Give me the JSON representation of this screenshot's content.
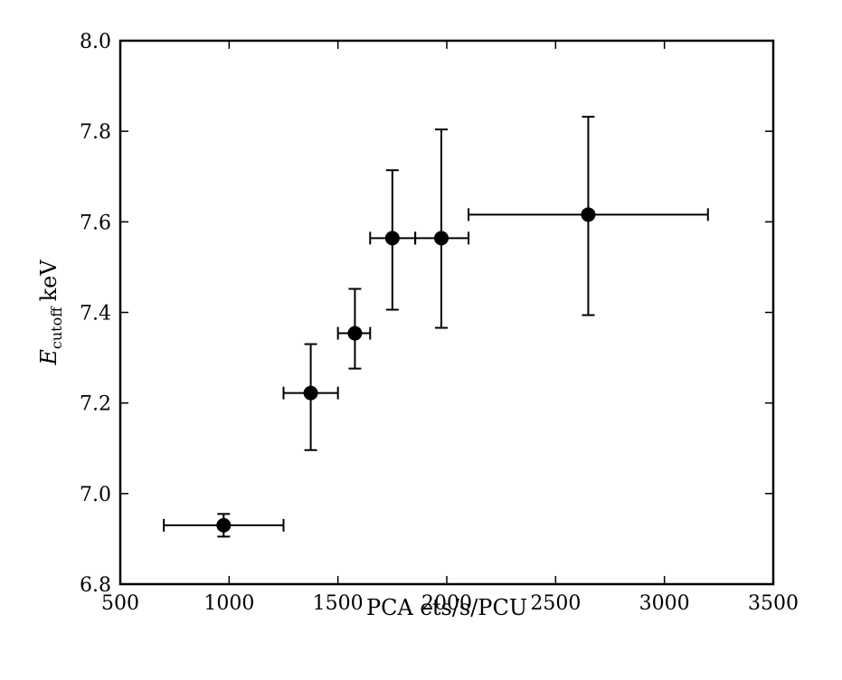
{
  "chart_data": {
    "type": "scatter",
    "xlabel": "PCA cts/s/PCU",
    "ylabel": {
      "symbol": "E",
      "subscript": "cutoff",
      "unit": "keV"
    },
    "xlim": [
      500,
      3500
    ],
    "ylim": [
      6.8,
      8.0
    ],
    "xticks": [
      500,
      1000,
      1500,
      2000,
      2500,
      3000,
      3500
    ],
    "yticks": [
      6.8,
      7.0,
      7.2,
      7.4,
      7.6,
      7.8,
      8.0
    ],
    "xtick_labels": [
      "500",
      "1000",
      "1500",
      "2000",
      "2500",
      "3000",
      "3500"
    ],
    "ytick_labels": [
      "6.8",
      "7.0",
      "7.2",
      "7.4",
      "7.6",
      "7.8",
      "8.0"
    ],
    "grid": false,
    "marker_color": "#000000",
    "points": [
      {
        "x": 975,
        "y": 6.93,
        "xerr": [
          700,
          1250
        ],
        "yerr": [
          6.905,
          6.955
        ]
      },
      {
        "x": 1375,
        "y": 7.222,
        "xerr": [
          1250,
          1500
        ],
        "yerr": [
          7.096,
          7.33
        ]
      },
      {
        "x": 1578,
        "y": 7.354,
        "xerr": [
          1500,
          1648
        ],
        "yerr": [
          7.276,
          7.452
        ]
      },
      {
        "x": 1750,
        "y": 7.564,
        "xerr": [
          1648,
          1855
        ],
        "yerr": [
          7.406,
          7.714
        ]
      },
      {
        "x": 1975,
        "y": 7.564,
        "xerr": [
          1855,
          2100
        ],
        "yerr": [
          7.366,
          7.804
        ]
      },
      {
        "x": 2650,
        "y": 7.616,
        "xerr": [
          2100,
          3200
        ],
        "yerr": [
          7.394,
          7.832
        ]
      }
    ]
  }
}
